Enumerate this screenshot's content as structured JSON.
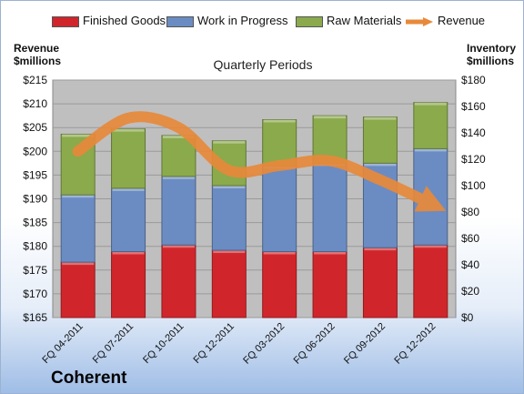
{
  "chart_data": {
    "type": "bar",
    "stacked": true,
    "subtitle": "Quarterly Periods",
    "company": "Coherent",
    "categories": [
      "FQ 04-2011",
      "FQ 07-2011",
      "FQ 10-2011",
      "FQ 12-2011",
      "FQ 03-2012",
      "FQ 06-2012",
      "FQ 09-2012",
      "FQ 12-2012"
    ],
    "ylabel_left": [
      "Revenue",
      "$millions"
    ],
    "ylabel_right": [
      "Inventory",
      "$millions"
    ],
    "left_axis": {
      "min": 165,
      "max": 215,
      "step": 5,
      "ticks": [
        "$165",
        "$170",
        "$175",
        "$180",
        "$185",
        "$190",
        "$195",
        "$200",
        "$205",
        "$210",
        "$215"
      ]
    },
    "right_axis": {
      "min": 0,
      "max": 180,
      "step": 20,
      "ticks": [
        "$0",
        "$20",
        "$40",
        "$60",
        "$80",
        "$100",
        "$120",
        "$140",
        "$160",
        "$180"
      ]
    },
    "series": [
      {
        "name": "Finished Goods",
        "axis": "right",
        "color": "#d0262b",
        "values": [
          42,
          50,
          55,
          51,
          50,
          50,
          53,
          55
        ]
      },
      {
        "name": "Work in Progress",
        "axis": "right",
        "color": "#6b8cc2",
        "values": [
          51,
          48,
          52,
          49,
          65,
          67,
          64,
          73
        ]
      },
      {
        "name": "Raw Materials",
        "axis": "right",
        "color": "#8aaa4c",
        "values": [
          46,
          45,
          31,
          34,
          35,
          36,
          35,
          35
        ]
      },
      {
        "name": "Revenue",
        "axis": "left",
        "type": "line",
        "color": "#e8893a",
        "values": [
          200,
          207,
          205,
          196,
          197,
          198,
          194,
          189
        ]
      }
    ],
    "grid": true,
    "legend_position": "top"
  }
}
